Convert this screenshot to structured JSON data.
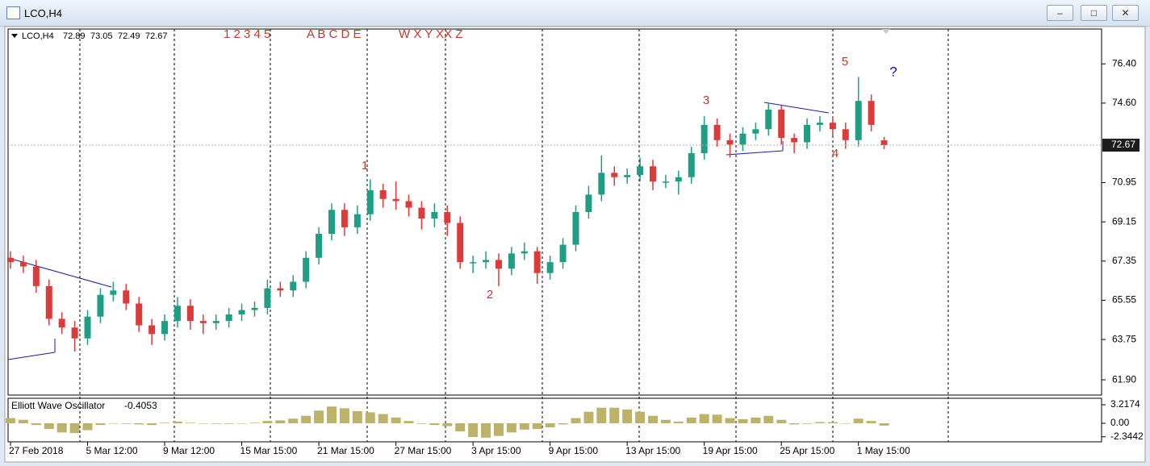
{
  "window": {
    "title": "LCO,H4"
  },
  "chart_data": [
    {
      "type": "candlestick",
      "title": "LCO,H4",
      "categories": [
        "27 Feb 2018",
        null,
        null,
        null,
        null,
        null,
        "5 Mar 12:00",
        null,
        null,
        null,
        null,
        null,
        "9 Mar 12:00",
        null,
        null,
        null,
        null,
        null,
        "15 Mar 15:00",
        null,
        null,
        null,
        null,
        null,
        "21 Mar 15:00",
        null,
        null,
        null,
        null,
        null,
        "27 Mar 15:00",
        null,
        null,
        null,
        null,
        null,
        "3 Apr 15:00",
        null,
        null,
        null,
        null,
        null,
        "9 Apr 15:00",
        null,
        null,
        null,
        null,
        null,
        "13 Apr 15:00",
        null,
        null,
        null,
        null,
        null,
        "19 Apr 15:00",
        null,
        null,
        null,
        null,
        null,
        "25 Apr 15:00",
        null,
        null,
        null,
        null,
        null,
        "1 May 15:00",
        null,
        null
      ],
      "open": [
        67.5,
        67.3,
        67.1,
        66.2,
        64.7,
        64.3,
        63.8,
        64.8,
        65.8,
        66.0,
        65.4,
        64.4,
        64.0,
        64.6,
        65.3,
        64.6,
        64.5,
        64.6,
        64.9,
        65.1,
        65.2,
        66.1,
        66.0,
        66.4,
        67.5,
        68.6,
        69.7,
        68.9,
        69.5,
        70.6,
        70.2,
        70.1,
        69.8,
        69.3,
        69.6,
        69.1,
        67.3,
        67.3,
        67.4,
        67.0,
        67.7,
        67.8,
        66.8,
        67.3,
        68.1,
        69.6,
        70.4,
        71.4,
        71.2,
        71.3,
        71.7,
        71.0,
        71.0,
        71.2,
        72.3,
        73.6,
        72.9,
        72.7,
        73.2,
        73.4,
        74.3,
        73.0,
        72.8,
        73.6,
        73.7,
        73.4,
        72.9,
        74.7,
        72.89
      ],
      "high": [
        67.8,
        67.6,
        67.4,
        66.5,
        65.0,
        64.6,
        65.1,
        66.1,
        66.4,
        66.3,
        65.7,
        64.7,
        64.9,
        65.7,
        65.6,
        64.9,
        64.9,
        65.2,
        65.4,
        65.5,
        66.5,
        66.4,
        66.7,
        67.8,
        68.9,
        70.0,
        70.0,
        69.9,
        71.1,
        70.9,
        71.0,
        70.4,
        70.1,
        70.0,
        69.9,
        69.4,
        67.6,
        67.8,
        67.7,
        68.0,
        68.2,
        68.0,
        67.6,
        68.4,
        69.9,
        70.8,
        72.2,
        71.7,
        71.6,
        72.1,
        72.0,
        71.3,
        71.5,
        72.6,
        74.0,
        73.9,
        73.2,
        73.5,
        73.7,
        74.6,
        74.5,
        73.2,
        73.9,
        74.0,
        74.0,
        73.7,
        75.8,
        75.0,
        73.05
      ],
      "low": [
        67.0,
        66.8,
        65.9,
        64.4,
        64.0,
        63.2,
        63.5,
        64.5,
        65.5,
        65.1,
        64.1,
        63.5,
        63.7,
        64.3,
        64.2,
        64.0,
        64.2,
        64.3,
        64.6,
        64.8,
        64.9,
        65.7,
        65.7,
        66.1,
        67.2,
        68.3,
        68.5,
        68.6,
        69.2,
        69.8,
        69.7,
        69.4,
        68.8,
        68.9,
        68.5,
        67.0,
        66.8,
        67.0,
        66.2,
        66.7,
        67.4,
        66.3,
        66.5,
        67.0,
        67.8,
        69.3,
        70.1,
        70.8,
        70.9,
        71.0,
        70.6,
        70.7,
        70.4,
        70.9,
        72.0,
        72.6,
        72.1,
        72.4,
        72.9,
        73.1,
        72.7,
        72.3,
        72.5,
        73.3,
        73.1,
        72.5,
        72.6,
        73.3,
        72.49
      ],
      "close": [
        67.3,
        67.1,
        66.2,
        64.7,
        64.3,
        63.8,
        64.8,
        65.8,
        66.0,
        65.4,
        64.4,
        64.0,
        64.6,
        65.3,
        64.6,
        64.5,
        64.6,
        64.9,
        65.1,
        65.2,
        66.1,
        66.0,
        66.4,
        67.5,
        68.6,
        69.7,
        68.9,
        69.5,
        70.6,
        70.2,
        70.1,
        69.8,
        69.3,
        69.6,
        69.1,
        67.3,
        67.3,
        67.4,
        67.0,
        67.7,
        67.8,
        66.8,
        67.3,
        68.1,
        69.6,
        70.4,
        71.4,
        71.2,
        71.3,
        71.7,
        71.0,
        71.0,
        71.2,
        72.3,
        73.6,
        72.9,
        72.7,
        73.2,
        73.4,
        74.3,
        73.0,
        72.8,
        73.6,
        73.7,
        73.4,
        72.9,
        74.7,
        73.6,
        72.67
      ],
      "up_color": "#1f9e84",
      "down_color": "#dc3b3b",
      "ylim": [
        61.2,
        78.0
      ],
      "yticks": [
        {
          "value": 61.9,
          "label": "61.90"
        },
        {
          "value": 63.75,
          "label": "63.75"
        },
        {
          "value": 65.55,
          "label": "65.55"
        },
        {
          "value": 67.35,
          "label": "67.35"
        },
        {
          "value": 69.15,
          "label": "69.15"
        },
        {
          "value": 70.95,
          "label": "70.95"
        },
        {
          "value": 74.6,
          "label": "74.60"
        },
        {
          "value": 76.4,
          "label": "76.40"
        }
      ],
      "annotations": [
        "1",
        "2",
        "3",
        "4",
        "5",
        "?"
      ],
      "wave_legend": [
        "1 2 3 4 5",
        "A B C D E",
        "W X Y XX Z"
      ]
    },
    {
      "type": "bar",
      "title": "Elliott Wave Oscillator",
      "values": [
        0.9,
        0.6,
        -0.3,
        -1.0,
        -1.6,
        -1.7,
        -1.2,
        -0.3,
        0.0,
        -0.1,
        -0.2,
        -0.3,
        0.1,
        0.3,
        0.1,
        0.0,
        -0.1,
        -0.1,
        0.0,
        0.1,
        0.4,
        0.5,
        0.8,
        1.3,
        2.2,
        2.9,
        2.6,
        2.1,
        1.9,
        1.6,
        1.0,
        0.4,
        -0.1,
        -0.3,
        -0.5,
        -1.4,
        -2.4,
        -2.5,
        -2.2,
        -1.6,
        -1.1,
        -1.0,
        -0.7,
        -0.2,
        0.9,
        2.0,
        2.7,
        2.7,
        2.4,
        2.0,
        1.3,
        0.6,
        0.3,
        1.0,
        1.6,
        1.5,
        0.9,
        0.7,
        1.0,
        1.3,
        0.6,
        -0.2,
        -0.1,
        0.2,
        0.2,
        0.0,
        0.8,
        0.4,
        -0.4053
      ],
      "color": "#bdb26a",
      "ylim": [
        -3.22,
        4.34
      ],
      "yticks": [
        3.2174,
        {
          "value": 0,
          "label": "0.00"
        },
        -2.3442
      ]
    }
  ]
}
